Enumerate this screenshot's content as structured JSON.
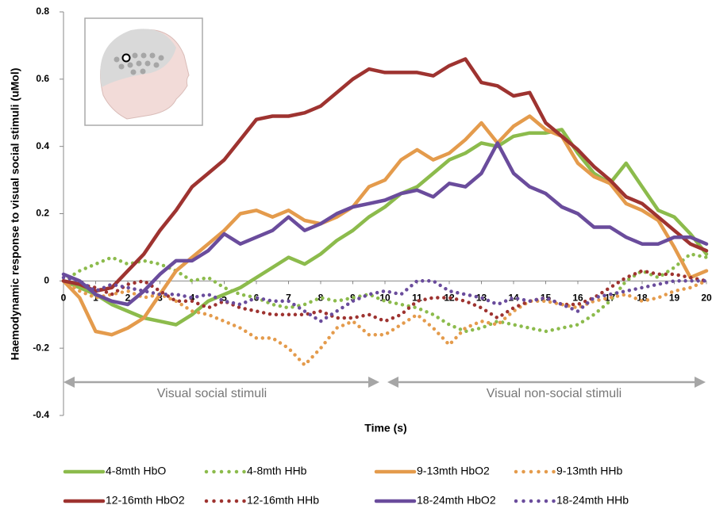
{
  "chart_data": {
    "type": "line",
    "y_label": "Haemodynamic response to visual social stimuli (uMol)",
    "x_label": "Time (s)",
    "annotations": [
      "Visual social stimuli",
      "Visual non-social stimuli"
    ],
    "xlim": [
      0,
      20
    ],
    "ylim": [
      -0.4,
      0.8
    ],
    "xticks": [
      0,
      1,
      2,
      3,
      4,
      5,
      6,
      7,
      8,
      9,
      10,
      11,
      12,
      13,
      14,
      15,
      16,
      17,
      18,
      19,
      20
    ],
    "yticks": [
      -0.4,
      -0.2,
      0,
      0.2,
      0.4,
      0.6,
      0.8
    ],
    "x": [
      0,
      0.5,
      1,
      1.5,
      2,
      2.5,
      3,
      3.5,
      4,
      4.5,
      5,
      5.5,
      6,
      6.5,
      7,
      7.5,
      8,
      8.5,
      9,
      9.5,
      10,
      10.5,
      11,
      11.5,
      12,
      12.5,
      13,
      13.5,
      14,
      14.5,
      15,
      15.5,
      16,
      16.5,
      17,
      17.5,
      18,
      18.5,
      19,
      19.5,
      20
    ],
    "series": [
      {
        "name": "4-8mth HbO",
        "color": "#8cbb4c",
        "style": "solid",
        "values": [
          0,
          -0.02,
          -0.04,
          -0.07,
          -0.09,
          -0.11,
          -0.12,
          -0.13,
          -0.1,
          -0.06,
          -0.04,
          -0.02,
          0.01,
          0.04,
          0.07,
          0.05,
          0.08,
          0.12,
          0.15,
          0.19,
          0.22,
          0.26,
          0.28,
          0.32,
          0.36,
          0.38,
          0.41,
          0.4,
          0.43,
          0.44,
          0.44,
          0.45,
          0.38,
          0.32,
          0.29,
          0.35,
          0.28,
          0.21,
          0.19,
          0.14,
          0.08
        ]
      },
      {
        "name": "4-8mth HHb",
        "color": "#8cbb4c",
        "style": "dotted",
        "values": [
          0,
          0.03,
          0.05,
          0.07,
          0.05,
          0.06,
          0.05,
          0.03,
          0,
          0.01,
          -0.02,
          -0.04,
          -0.05,
          -0.07,
          -0.08,
          -0.07,
          -0.05,
          -0.06,
          -0.05,
          -0.04,
          -0.06,
          -0.07,
          -0.08,
          -0.1,
          -0.13,
          -0.15,
          -0.14,
          -0.12,
          -0.13,
          -0.14,
          -0.15,
          -0.14,
          -0.13,
          -0.1,
          -0.06,
          0,
          0.03,
          0.01,
          0.04,
          0.08,
          0.07
        ]
      },
      {
        "name": "9-13mth HbO2",
        "color": "#e49b4c",
        "style": "solid",
        "values": [
          0,
          -0.05,
          -0.15,
          -0.16,
          -0.14,
          -0.11,
          -0.04,
          0.03,
          0.07,
          0.11,
          0.15,
          0.2,
          0.21,
          0.19,
          0.21,
          0.18,
          0.17,
          0.19,
          0.22,
          0.28,
          0.3,
          0.36,
          0.39,
          0.36,
          0.38,
          0.42,
          0.47,
          0.41,
          0.46,
          0.49,
          0.45,
          0.43,
          0.35,
          0.31,
          0.29,
          0.23,
          0.21,
          0.18,
          0.1,
          0.01,
          0.03
        ]
      },
      {
        "name": "9-13mth HHb",
        "color": "#e49b4c",
        "style": "dotted",
        "values": [
          0,
          -0.03,
          -0.05,
          -0.04,
          -0.03,
          -0.05,
          -0.04,
          -0.06,
          -0.09,
          -0.1,
          -0.12,
          -0.14,
          -0.17,
          -0.17,
          -0.2,
          -0.25,
          -0.2,
          -0.14,
          -0.12,
          -0.16,
          -0.16,
          -0.13,
          -0.1,
          -0.14,
          -0.19,
          -0.14,
          -0.12,
          -0.13,
          -0.09,
          -0.06,
          -0.06,
          -0.07,
          -0.08,
          -0.06,
          -0.05,
          -0.04,
          -0.06,
          -0.05,
          -0.03,
          -0.02,
          0
        ]
      },
      {
        "name": "12-16mth HbO2",
        "color": "#9e3330",
        "style": "solid",
        "values": [
          0,
          -0.01,
          -0.03,
          -0.02,
          0.03,
          0.08,
          0.15,
          0.21,
          0.28,
          0.32,
          0.36,
          0.42,
          0.48,
          0.49,
          0.49,
          0.5,
          0.52,
          0.56,
          0.6,
          0.63,
          0.62,
          0.62,
          0.62,
          0.61,
          0.64,
          0.66,
          0.59,
          0.58,
          0.55,
          0.56,
          0.47,
          0.43,
          0.39,
          0.34,
          0.3,
          0.25,
          0.23,
          0.19,
          0.15,
          0.11,
          0.09
        ]
      },
      {
        "name": "12-16mth HHb",
        "color": "#9e3330",
        "style": "dotted",
        "values": [
          0,
          -0.01,
          -0.02,
          -0.04,
          -0.01,
          0,
          -0.03,
          -0.06,
          -0.06,
          -0.08,
          -0.06,
          -0.08,
          -0.09,
          -0.1,
          -0.1,
          -0.1,
          -0.09,
          -0.11,
          -0.11,
          -0.1,
          -0.12,
          -0.1,
          -0.06,
          -0.05,
          -0.05,
          -0.06,
          -0.08,
          -0.11,
          -0.08,
          -0.06,
          -0.05,
          -0.07,
          -0.07,
          -0.05,
          -0.02,
          0.01,
          0.03,
          0.02,
          0.02,
          0.01,
          0
        ]
      },
      {
        "name": "18-24mth HbO2",
        "color": "#6a4c9c",
        "style": "solid",
        "values": [
          0.02,
          0,
          -0.04,
          -0.06,
          -0.07,
          -0.03,
          0.02,
          0.06,
          0.06,
          0.09,
          0.14,
          0.11,
          0.13,
          0.15,
          0.19,
          0.15,
          0.17,
          0.2,
          0.22,
          0.23,
          0.24,
          0.26,
          0.27,
          0.25,
          0.29,
          0.28,
          0.32,
          0.41,
          0.32,
          0.28,
          0.26,
          0.22,
          0.2,
          0.16,
          0.16,
          0.13,
          0.11,
          0.11,
          0.13,
          0.13,
          0.11
        ]
      },
      {
        "name": "18-24mth HHb",
        "color": "#6a4c9c",
        "style": "dotted",
        "values": [
          0.01,
          0,
          -0.03,
          -0.01,
          -0.02,
          -0.03,
          -0.04,
          -0.04,
          -0.05,
          -0.04,
          -0.06,
          -0.07,
          -0.05,
          -0.06,
          -0.06,
          -0.09,
          -0.12,
          -0.09,
          -0.06,
          -0.04,
          -0.03,
          -0.04,
          0,
          0,
          -0.03,
          -0.04,
          -0.05,
          -0.07,
          -0.05,
          -0.06,
          -0.05,
          -0.07,
          -0.09,
          -0.05,
          -0.04,
          -0.03,
          -0.02,
          -0.01,
          0,
          0,
          0
        ]
      }
    ]
  }
}
